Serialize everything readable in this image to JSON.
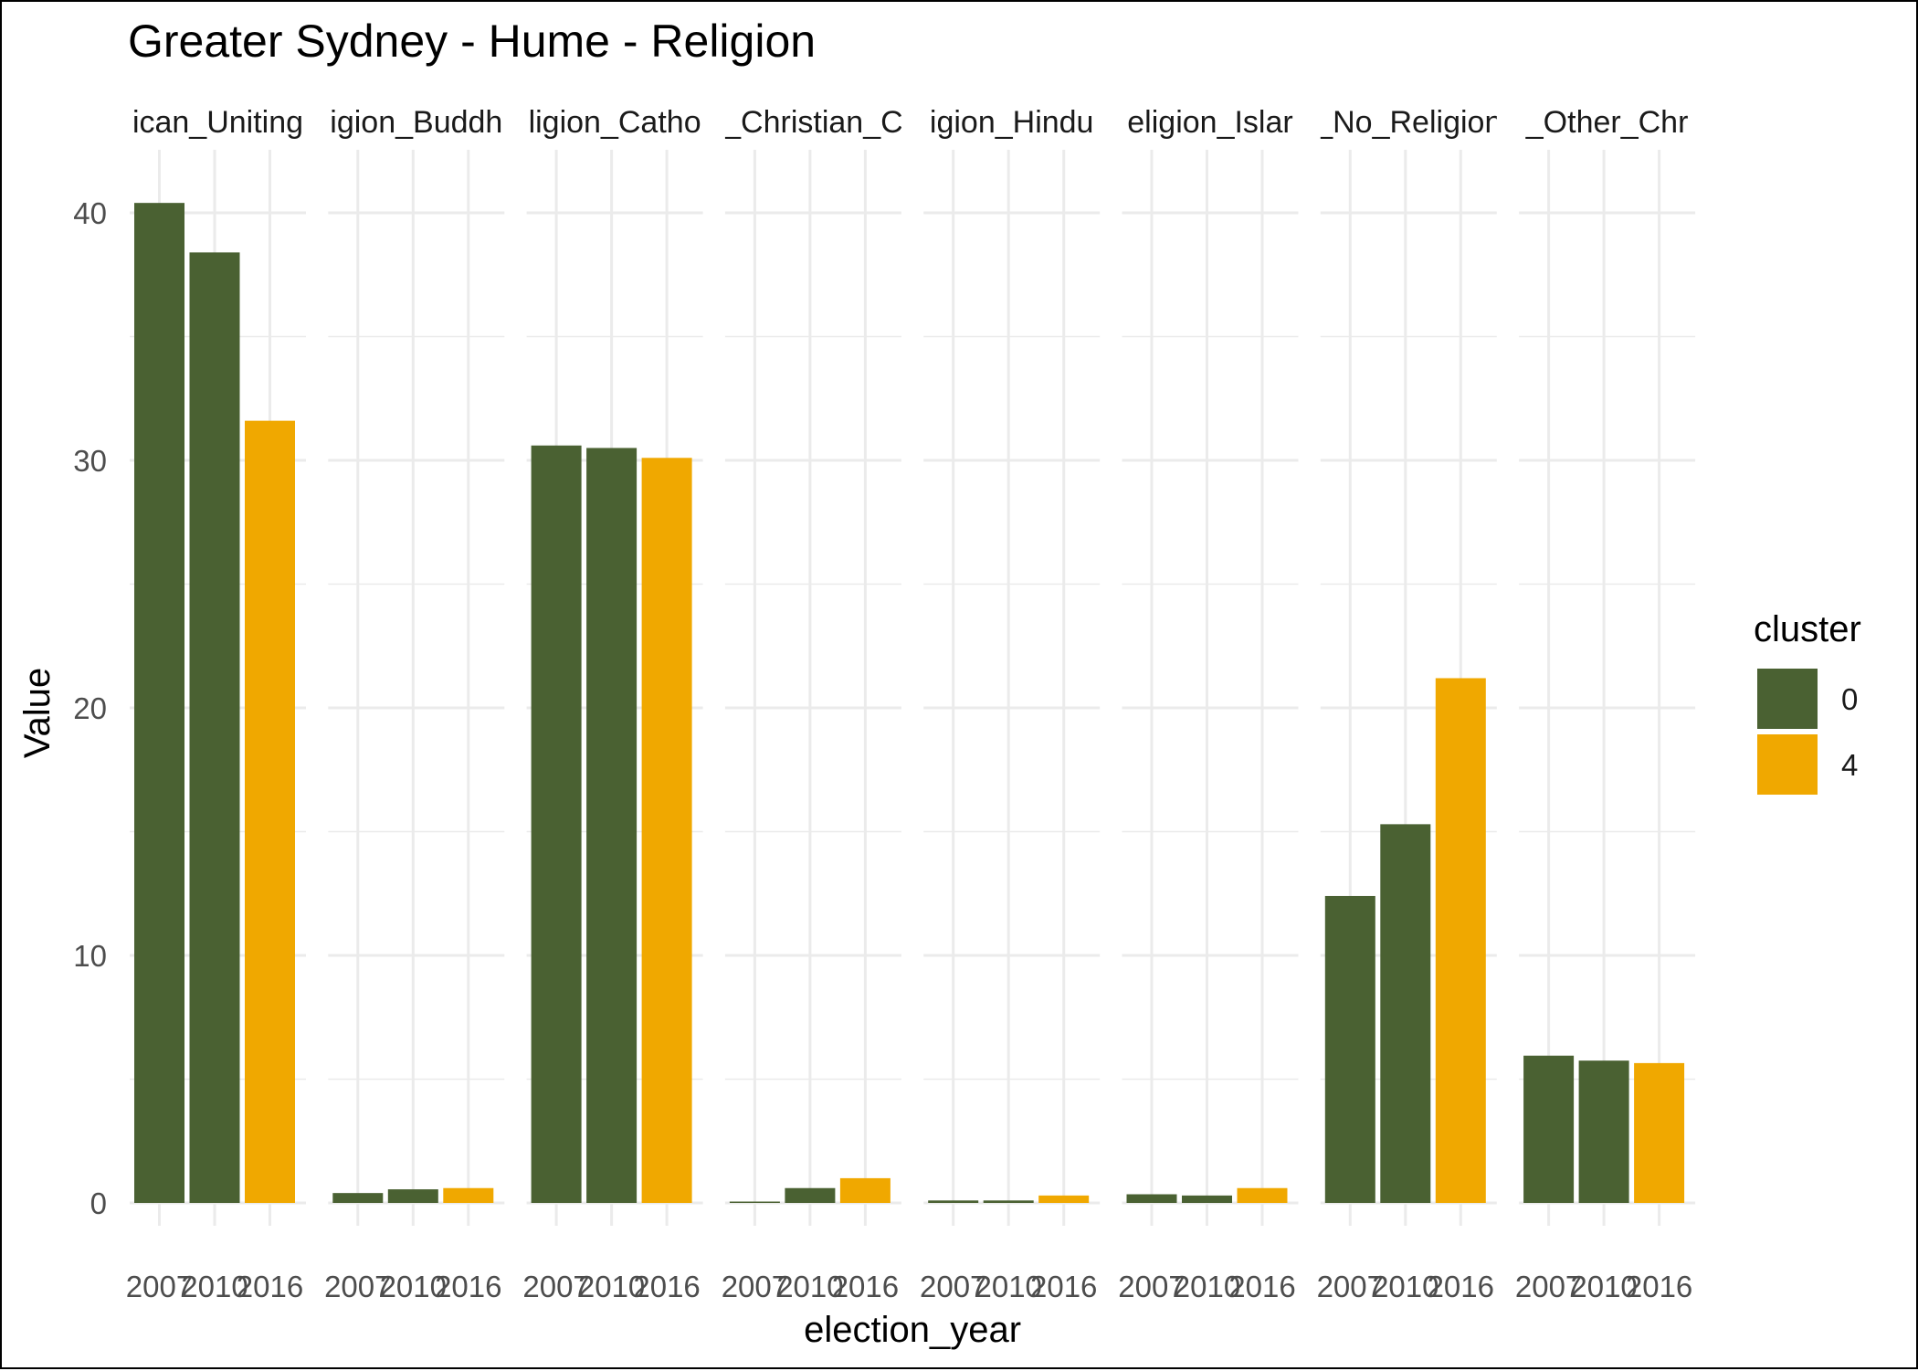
{
  "chart_data": {
    "type": "bar",
    "title": "Greater Sydney - Hume - Religion",
    "xlabel": "election_year",
    "ylabel": "Value",
    "ylim": [
      0,
      42.5
    ],
    "yticks": [
      0,
      10,
      20,
      30,
      40
    ],
    "categories": [
      "2007",
      "2010",
      "2016"
    ],
    "grid": true,
    "legend": {
      "title": "cluster",
      "position": "right",
      "entries": [
        {
          "label": "0",
          "color": "#4a6132"
        },
        {
          "label": "4",
          "color": "#f0a800"
        }
      ]
    },
    "facets": [
      {
        "label": "ican_Uniting",
        "values": [
          40.4,
          38.4,
          31.6
        ],
        "clusters": [
          "0",
          "0",
          "4"
        ]
      },
      {
        "label": "igion_Buddh",
        "values": [
          0.4,
          0.55,
          0.6
        ],
        "clusters": [
          "0",
          "0",
          "4"
        ]
      },
      {
        "label": "ligion_Catho",
        "values": [
          30.6,
          30.5,
          30.1
        ],
        "clusters": [
          "0",
          "0",
          "4"
        ]
      },
      {
        "label": "_Christian_C",
        "values": [
          0.05,
          0.6,
          1.0
        ],
        "clusters": [
          "0",
          "0",
          "4"
        ]
      },
      {
        "label": "igion_Hindu",
        "values": [
          0.1,
          0.1,
          0.3
        ],
        "clusters": [
          "0",
          "0",
          "4"
        ]
      },
      {
        "label": "eligion_Islar",
        "values": [
          0.35,
          0.3,
          0.6
        ],
        "clusters": [
          "0",
          "0",
          "4"
        ]
      },
      {
        "label": "_No_Religion",
        "values": [
          12.4,
          15.3,
          21.2
        ],
        "clusters": [
          "0",
          "0",
          "4"
        ]
      },
      {
        "label": "_Other_Chr",
        "values": [
          5.95,
          5.75,
          5.65
        ],
        "clusters": [
          "0",
          "0",
          "4"
        ]
      }
    ]
  }
}
